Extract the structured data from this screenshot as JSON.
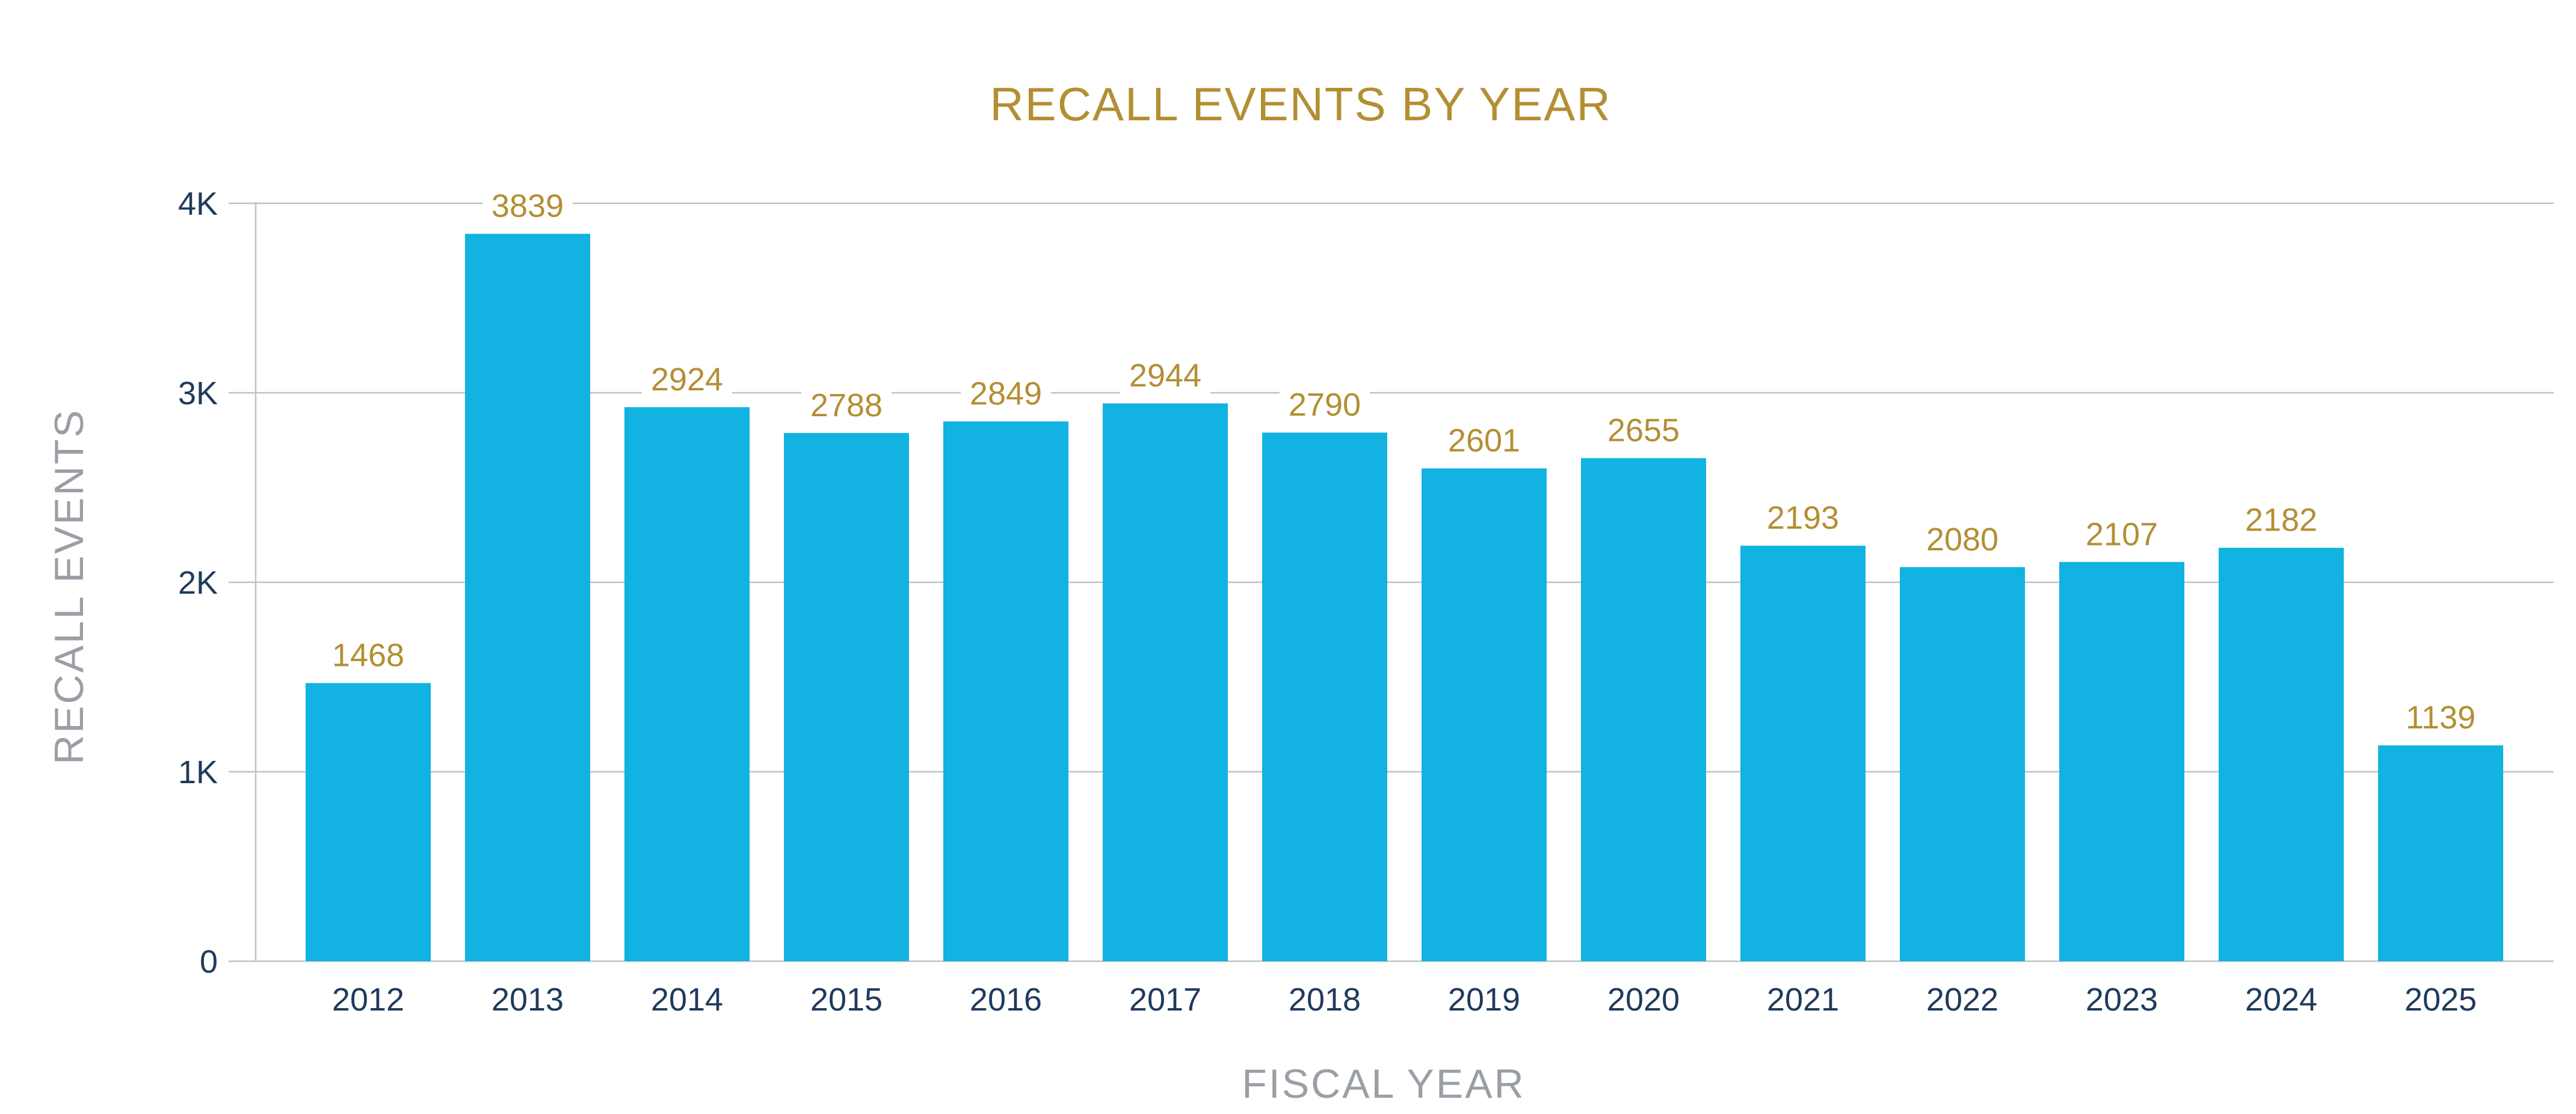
{
  "chart_data": {
    "type": "bar",
    "title": "RECALL EVENTS BY YEAR",
    "xlabel": "FISCAL YEAR",
    "ylabel": "RECALL EVENTS",
    "categories": [
      "2012",
      "2013",
      "2014",
      "2015",
      "2016",
      "2017",
      "2018",
      "2019",
      "2020",
      "2021",
      "2022",
      "2023",
      "2024",
      "2025"
    ],
    "values": [
      1468,
      3839,
      2924,
      2788,
      2849,
      2944,
      2790,
      2601,
      2655,
      2193,
      2080,
      2107,
      2182,
      1139
    ],
    "ylim": [
      0,
      4000
    ],
    "yticks": [
      0,
      1000,
      2000,
      3000,
      4000
    ],
    "ytick_labels": [
      "0",
      "1K",
      "2K",
      "3K",
      "4K"
    ],
    "grid": true,
    "legend": "none",
    "colors": {
      "bar": "#12B2E2",
      "title": "#B38F33",
      "value_label": "#B38F33",
      "tick_label": "#1F3A5C",
      "axis_title": "#9A9FA6",
      "grid": "#BFC2C5"
    }
  }
}
